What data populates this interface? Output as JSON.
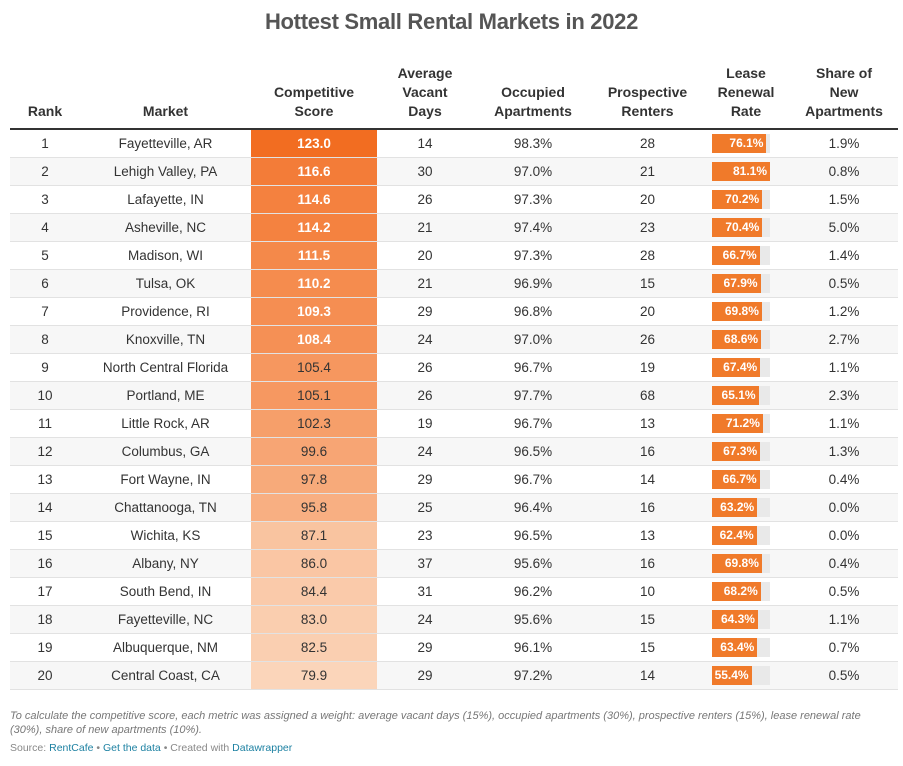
{
  "title": "Hottest Small Rental Markets in 2022",
  "columns": [
    "Rank",
    "Market",
    "Competitive Score",
    "Average Vacant Days",
    "Occupied Apartments",
    "Prospective Renters",
    "Lease Renewal Rate",
    "Share of New Apartments"
  ],
  "column_header_lines": [
    [
      "Rank"
    ],
    [
      "Market"
    ],
    [
      "Competitive",
      "Score"
    ],
    [
      "Average",
      "Vacant",
      "Days"
    ],
    [
      "Occupied",
      "Apartments"
    ],
    [
      "Prospective",
      "Renters"
    ],
    [
      "Lease",
      "Renewal",
      "Rate"
    ],
    [
      "Share of",
      "New",
      "Apartments"
    ]
  ],
  "colors": {
    "score_high": "#f26d21",
    "score_low": "#fbd5ba",
    "bar": "#f07a2a",
    "bar_track": "#e9e9e9",
    "link": "#1d81a2"
  },
  "chart_data": {
    "type": "table",
    "title": "Hottest Small Rental Markets in 2022",
    "score_bold_threshold": 108,
    "lease_renewal_bar_max": 81.1,
    "rows": [
      {
        "rank": "1",
        "market": "Fayetteville, AR",
        "score": 123.0,
        "score_label": "123.0",
        "vacant_days": "14",
        "occupied": "98.3%",
        "renters": "28",
        "renewal": 76.1,
        "renewal_label": "76.1%",
        "new_share": "1.9%"
      },
      {
        "rank": "2",
        "market": "Lehigh Valley, PA",
        "score": 116.6,
        "score_label": "116.6",
        "vacant_days": "30",
        "occupied": "97.0%",
        "renters": "21",
        "renewal": 81.1,
        "renewal_label": "81.1%",
        "new_share": "0.8%"
      },
      {
        "rank": "3",
        "market": "Lafayette, IN",
        "score": 114.6,
        "score_label": "114.6",
        "vacant_days": "26",
        "occupied": "97.3%",
        "renters": "20",
        "renewal": 70.2,
        "renewal_label": "70.2%",
        "new_share": "1.5%"
      },
      {
        "rank": "4",
        "market": "Asheville, NC",
        "score": 114.2,
        "score_label": "114.2",
        "vacant_days": "21",
        "occupied": "97.4%",
        "renters": "23",
        "renewal": 70.4,
        "renewal_label": "70.4%",
        "new_share": "5.0%"
      },
      {
        "rank": "5",
        "market": "Madison, WI",
        "score": 111.5,
        "score_label": "111.5",
        "vacant_days": "20",
        "occupied": "97.3%",
        "renters": "28",
        "renewal": 66.7,
        "renewal_label": "66.7%",
        "new_share": "1.4%"
      },
      {
        "rank": "6",
        "market": "Tulsa, OK",
        "score": 110.2,
        "score_label": "110.2",
        "vacant_days": "21",
        "occupied": "96.9%",
        "renters": "15",
        "renewal": 67.9,
        "renewal_label": "67.9%",
        "new_share": "0.5%"
      },
      {
        "rank": "7",
        "market": "Providence, RI",
        "score": 109.3,
        "score_label": "109.3",
        "vacant_days": "29",
        "occupied": "96.8%",
        "renters": "20",
        "renewal": 69.8,
        "renewal_label": "69.8%",
        "new_share": "1.2%"
      },
      {
        "rank": "8",
        "market": "Knoxville, TN",
        "score": 108.4,
        "score_label": "108.4",
        "vacant_days": "24",
        "occupied": "97.0%",
        "renters": "26",
        "renewal": 68.6,
        "renewal_label": "68.6%",
        "new_share": "2.7%"
      },
      {
        "rank": "9",
        "market": "North Central Florida",
        "score": 105.4,
        "score_label": "105.4",
        "vacant_days": "26",
        "occupied": "96.7%",
        "renters": "19",
        "renewal": 67.4,
        "renewal_label": "67.4%",
        "new_share": "1.1%"
      },
      {
        "rank": "10",
        "market": "Portland, ME",
        "score": 105.1,
        "score_label": "105.1",
        "vacant_days": "26",
        "occupied": "97.7%",
        "renters": "68",
        "renewal": 65.1,
        "renewal_label": "65.1%",
        "new_share": "2.3%"
      },
      {
        "rank": "11",
        "market": "Little Rock, AR",
        "score": 102.3,
        "score_label": "102.3",
        "vacant_days": "19",
        "occupied": "96.7%",
        "renters": "13",
        "renewal": 71.2,
        "renewal_label": "71.2%",
        "new_share": "1.1%"
      },
      {
        "rank": "12",
        "market": "Columbus, GA",
        "score": 99.6,
        "score_label": "99.6",
        "vacant_days": "24",
        "occupied": "96.5%",
        "renters": "16",
        "renewal": 67.3,
        "renewal_label": "67.3%",
        "new_share": "1.3%"
      },
      {
        "rank": "13",
        "market": "Fort Wayne, IN",
        "score": 97.8,
        "score_label": "97.8",
        "vacant_days": "29",
        "occupied": "96.7%",
        "renters": "14",
        "renewal": 66.7,
        "renewal_label": "66.7%",
        "new_share": "0.4%"
      },
      {
        "rank": "14",
        "market": "Chattanooga, TN",
        "score": 95.8,
        "score_label": "95.8",
        "vacant_days": "25",
        "occupied": "96.4%",
        "renters": "16",
        "renewal": 63.2,
        "renewal_label": "63.2%",
        "new_share": "0.0%"
      },
      {
        "rank": "15",
        "market": "Wichita, KS",
        "score": 87.1,
        "score_label": "87.1",
        "vacant_days": "23",
        "occupied": "96.5%",
        "renters": "13",
        "renewal": 62.4,
        "renewal_label": "62.4%",
        "new_share": "0.0%"
      },
      {
        "rank": "16",
        "market": "Albany, NY",
        "score": 86.0,
        "score_label": "86.0",
        "vacant_days": "37",
        "occupied": "95.6%",
        "renters": "16",
        "renewal": 69.8,
        "renewal_label": "69.8%",
        "new_share": "0.4%"
      },
      {
        "rank": "17",
        "market": "South Bend, IN",
        "score": 84.4,
        "score_label": "84.4",
        "vacant_days": "31",
        "occupied": "96.2%",
        "renters": "10",
        "renewal": 68.2,
        "renewal_label": "68.2%",
        "new_share": "0.5%"
      },
      {
        "rank": "18",
        "market": "Fayetteville, NC",
        "score": 83.0,
        "score_label": "83.0",
        "vacant_days": "24",
        "occupied": "95.6%",
        "renters": "15",
        "renewal": 64.3,
        "renewal_label": "64.3%",
        "new_share": "1.1%"
      },
      {
        "rank": "19",
        "market": "Albuquerque, NM",
        "score": 82.5,
        "score_label": "82.5",
        "vacant_days": "29",
        "occupied": "96.1%",
        "renters": "15",
        "renewal": 63.4,
        "renewal_label": "63.4%",
        "new_share": "0.7%"
      },
      {
        "rank": "20",
        "market": "Central Coast, CA",
        "score": 79.9,
        "score_label": "79.9",
        "vacant_days": "29",
        "occupied": "97.2%",
        "renters": "14",
        "renewal": 55.4,
        "renewal_label": "55.4%",
        "new_share": "0.5%"
      }
    ]
  },
  "notes": "To calculate the competitive score, each metric was assigned a weight: average vacant days (15%), occupied apartments (30%), prospective renters (15%), lease renewal rate (30%), share of new apartments (10%).",
  "source": {
    "prefix": "Source: ",
    "source_link": "RentCafe",
    "separator_1": " • ",
    "data_link": "Get the data",
    "separator_2": " • Created with ",
    "tool_link": "Datawrapper"
  }
}
